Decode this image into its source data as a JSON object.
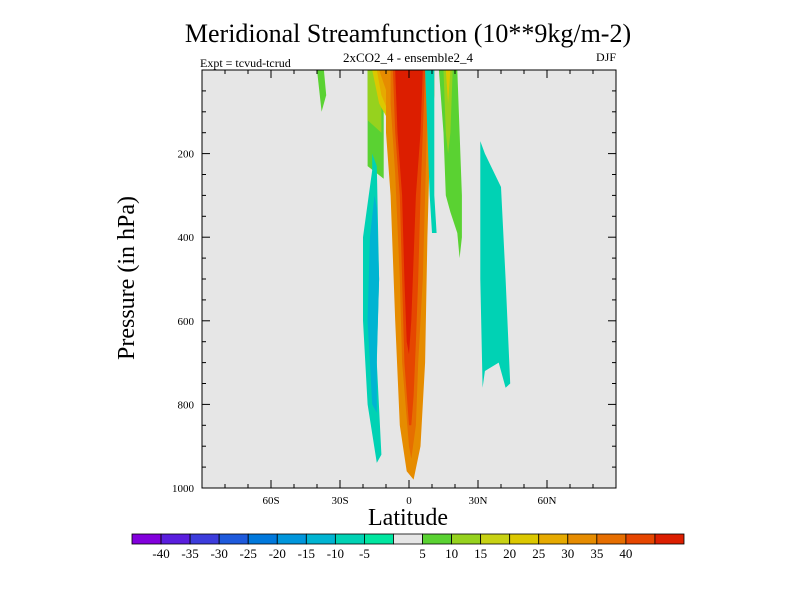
{
  "chart_data": {
    "type": "heatmap",
    "title": "Meridional Streamfunction (10**9kg/m-2)",
    "subtitle": "2xCO2_4 - ensemble2_4",
    "left_annotation": "Expt = tcvud-tcrud",
    "right_annotation": "DJF",
    "xlabel": "Latitude",
    "ylabel": "Pressure (in hPa)",
    "xlim": [
      -90,
      90
    ],
    "ylim": [
      1000,
      0
    ],
    "x_ticks": [
      {
        "value": -60,
        "label": "60S"
      },
      {
        "value": -30,
        "label": "30S"
      },
      {
        "value": 0,
        "label": "0"
      },
      {
        "value": 30,
        "label": "30N"
      },
      {
        "value": 60,
        "label": "60N"
      }
    ],
    "y_ticks": [
      {
        "value": 200,
        "label": "200"
      },
      {
        "value": 400,
        "label": "400"
      },
      {
        "value": 600,
        "label": "600"
      },
      {
        "value": 800,
        "label": "800"
      },
      {
        "value": 1000,
        "label": "1000"
      }
    ],
    "colorbar": {
      "labels": [
        "-40",
        "-35",
        "-30",
        "-25",
        "-20",
        "-15",
        "-10",
        "-5",
        "5",
        "10",
        "15",
        "20",
        "25",
        "30",
        "35",
        "40"
      ],
      "colors": [
        "#8200dc",
        "#5a1ede",
        "#3c3cdc",
        "#1e5adc",
        "#0078dc",
        "#0096dc",
        "#00b4d2",
        "#00d2b4",
        "#00e6a0",
        "#e6e6e6",
        "#5ad232",
        "#96d21e",
        "#c8d214",
        "#dcc800",
        "#e6aa00",
        "#e68c00",
        "#e66e00",
        "#e64600",
        "#dc1e00"
      ],
      "ticks": [
        -40,
        -35,
        -30,
        -25,
        -20,
        -15,
        -10,
        -5,
        5,
        10,
        15,
        20,
        25,
        30,
        35,
        40
      ]
    },
    "regions": [
      {
        "level": 5,
        "color": "#5ad232",
        "points": [
          [
            -40,
            0
          ],
          [
            -37,
            0
          ],
          [
            -36,
            60
          ],
          [
            -38,
            100
          ]
        ]
      },
      {
        "level": 5,
        "color": "#5ad232",
        "points": [
          [
            -18,
            0
          ],
          [
            -11,
            0
          ],
          [
            -11,
            260
          ],
          [
            -18,
            230
          ],
          [
            -18,
            120
          ]
        ]
      },
      {
        "level": 15,
        "color": "#96d21e",
        "points": [
          [
            -18,
            0
          ],
          [
            -12,
            0
          ],
          [
            -12,
            150
          ],
          [
            -18,
            120
          ]
        ]
      },
      {
        "level": 25,
        "color": "#dcc800",
        "points": [
          [
            -16,
            0
          ],
          [
            -9,
            0
          ],
          [
            -9,
            120
          ],
          [
            -13,
            80
          ]
        ]
      },
      {
        "level": 30,
        "color": "#e6aa00",
        "points": [
          [
            -14,
            0
          ],
          [
            -9,
            0
          ],
          [
            -9,
            100
          ],
          [
            -12,
            60
          ]
        ]
      },
      {
        "level": 35,
        "color": "#e68c00",
        "points": [
          [
            -13,
            0
          ],
          [
            -8,
            0
          ],
          [
            -8,
            80
          ]
        ]
      },
      {
        "level": 35,
        "color": "#e68c00",
        "points": [
          [
            -10,
            0
          ],
          [
            11,
            0
          ],
          [
            11,
            60
          ],
          [
            9,
            200
          ],
          [
            8,
            400
          ],
          [
            7,
            700
          ],
          [
            5,
            900
          ],
          [
            2,
            980
          ],
          [
            -1,
            960
          ],
          [
            -4,
            850
          ],
          [
            -6,
            600
          ],
          [
            -8,
            300
          ],
          [
            -10,
            150
          ]
        ]
      },
      {
        "level": 40,
        "color": "#e66e00",
        "points": [
          [
            -8,
            0
          ],
          [
            9,
            0
          ],
          [
            8,
            100
          ],
          [
            7,
            300
          ],
          [
            6,
            500
          ],
          [
            4,
            700
          ],
          [
            3,
            850
          ],
          [
            1,
            930
          ],
          [
            0,
            900
          ],
          [
            -3,
            700
          ],
          [
            -4,
            500
          ],
          [
            -6,
            250
          ],
          [
            -8,
            80
          ]
        ]
      },
      {
        "level": 40,
        "color": "#e64600",
        "points": [
          [
            -7,
            0
          ],
          [
            7,
            0
          ],
          [
            6,
            150
          ],
          [
            5,
            300
          ],
          [
            4,
            500
          ],
          [
            3,
            650
          ],
          [
            2,
            780
          ],
          [
            1,
            850
          ],
          [
            0,
            850
          ],
          [
            -2,
            700
          ],
          [
            -3,
            500
          ],
          [
            -4,
            300
          ],
          [
            -6,
            150
          ]
        ]
      },
      {
        "level": 45,
        "color": "#dc1e00",
        "points": [
          [
            -6,
            0
          ],
          [
            6,
            0
          ],
          [
            5,
            150
          ],
          [
            3,
            300
          ],
          [
            2,
            450
          ],
          [
            1,
            600
          ],
          [
            0,
            680
          ],
          [
            -1,
            650
          ],
          [
            -2,
            500
          ],
          [
            -3,
            300
          ],
          [
            -5,
            150
          ]
        ]
      },
      {
        "level": -5,
        "color": "#00d2b4",
        "points": [
          [
            7,
            0
          ],
          [
            11,
            0
          ],
          [
            11,
            300
          ],
          [
            12,
            390
          ],
          [
            10,
            390
          ],
          [
            9,
            300
          ],
          [
            8,
            150
          ]
        ]
      },
      {
        "level": 5,
        "color": "#5ad232",
        "points": [
          [
            13,
            0
          ],
          [
            21,
            0
          ],
          [
            22,
            150
          ],
          [
            23,
            300
          ],
          [
            23,
            400
          ],
          [
            22,
            450
          ],
          [
            21,
            390
          ],
          [
            18,
            340
          ],
          [
            16,
            300
          ],
          [
            15,
            150
          ]
        ]
      },
      {
        "level": 15,
        "color": "#96d21e",
        "points": [
          [
            15,
            0
          ],
          [
            19,
            0
          ],
          [
            18,
            150
          ],
          [
            17,
            200
          ],
          [
            16,
            150
          ]
        ]
      },
      {
        "level": 25,
        "color": "#dcc800",
        "points": [
          [
            16,
            0
          ],
          [
            18,
            0
          ],
          [
            17,
            80
          ]
        ]
      },
      {
        "level": -5,
        "color": "#00d2b4",
        "points": [
          [
            -16,
            200
          ],
          [
            -14,
            230
          ],
          [
            -13,
            500
          ],
          [
            -14,
            700
          ],
          [
            -12,
            920
          ],
          [
            -14,
            940
          ],
          [
            -18,
            800
          ],
          [
            -20,
            600
          ],
          [
            -20,
            400
          ],
          [
            -16,
            240
          ]
        ]
      },
      {
        "level": -10,
        "color": "#00b4d2",
        "points": [
          [
            -15,
            300
          ],
          [
            -14,
            330
          ],
          [
            -13,
            500
          ],
          [
            -14,
            680
          ],
          [
            -14,
            820
          ],
          [
            -16,
            800
          ],
          [
            -18,
            600
          ],
          [
            -17,
            400
          ]
        ]
      },
      {
        "level": -5,
        "color": "#00d2b4",
        "points": [
          [
            31,
            170
          ],
          [
            33,
            200
          ],
          [
            40,
            280
          ],
          [
            42,
            500
          ],
          [
            44,
            750
          ],
          [
            42,
            760
          ],
          [
            39,
            700
          ],
          [
            33,
            720
          ],
          [
            32,
            760
          ],
          [
            31,
            500
          ],
          [
            31,
            300
          ]
        ]
      }
    ]
  }
}
